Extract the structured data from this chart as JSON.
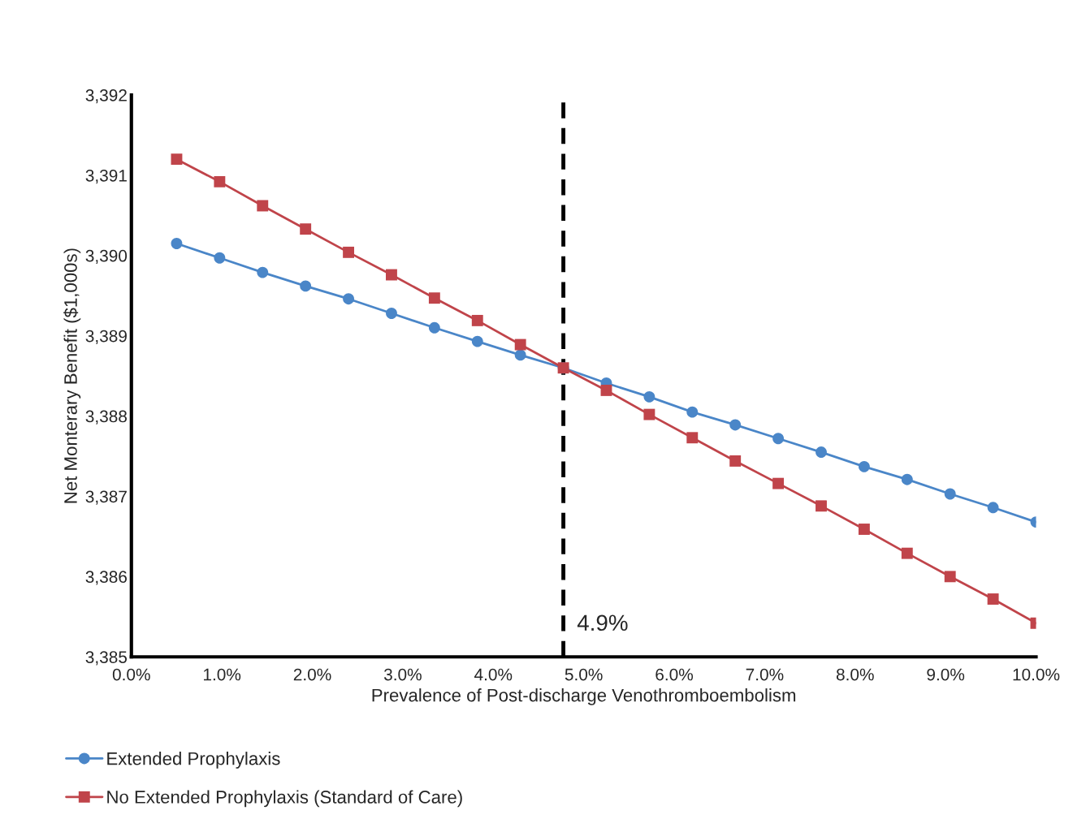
{
  "chart_data": {
    "type": "line",
    "xlabel": "Prevalence of Post-discharge Venothromboembolism",
    "ylabel": "Net Monterary Benefit ($1,000s)",
    "x": [
      0.5,
      0.975,
      1.45,
      1.925,
      2.4,
      2.875,
      3.35,
      3.825,
      4.3,
      4.775,
      5.25,
      5.725,
      6.2,
      6.675,
      7.15,
      7.625,
      8.1,
      8.575,
      9.05,
      9.525,
      10.0
    ],
    "series": [
      {
        "name": "Extended Prophylaxis",
        "color": "#4a86c8",
        "marker": "circle",
        "values": [
          3390.15,
          3389.97,
          3389.79,
          3389.62,
          3389.46,
          3389.28,
          3389.1,
          3388.93,
          3388.76,
          3388.6,
          3388.41,
          3388.24,
          3388.05,
          3387.89,
          3387.72,
          3387.55,
          3387.37,
          3387.21,
          3387.03,
          3386.86,
          3386.68
        ]
      },
      {
        "name": "No Extended Prophylaxis (Standard of Care)",
        "color": "#c0444a",
        "marker": "square",
        "values": [
          3391.2,
          3390.92,
          3390.62,
          3390.33,
          3390.04,
          3389.76,
          3389.47,
          3389.19,
          3388.89,
          3388.6,
          3388.32,
          3388.02,
          3387.73,
          3387.44,
          3387.16,
          3386.88,
          3386.59,
          3386.29,
          3386.0,
          3385.72,
          3385.42
        ]
      }
    ],
    "xlim": [
      0,
      10
    ],
    "xticks": [
      {
        "value": 0,
        "label": "0.0%"
      },
      {
        "value": 1,
        "label": "1.0%"
      },
      {
        "value": 2,
        "label": "2.0%"
      },
      {
        "value": 3,
        "label": "3.0%"
      },
      {
        "value": 4,
        "label": "4.0%"
      },
      {
        "value": 5,
        "label": "5.0%"
      },
      {
        "value": 6,
        "label": "6.0%"
      },
      {
        "value": 7,
        "label": "7.0%"
      },
      {
        "value": 8,
        "label": "8.0%"
      },
      {
        "value": 9,
        "label": "9.0%"
      },
      {
        "value": 10,
        "label": "10.0%"
      }
    ],
    "ylim": [
      3385,
      3392
    ],
    "yticks": [
      {
        "value": 3385,
        "label": "3,385"
      },
      {
        "value": 3386,
        "label": "3,386"
      },
      {
        "value": 3387,
        "label": "3,387"
      },
      {
        "value": 3388,
        "label": "3,388"
      },
      {
        "value": 3389,
        "label": "3,389"
      },
      {
        "value": 3390,
        "label": "3,390"
      },
      {
        "value": 3391,
        "label": "3,391"
      },
      {
        "value": 3392,
        "label": "3,392"
      }
    ],
    "ref_lines": [
      {
        "axis": "x",
        "value": 4.775,
        "color": "#000000",
        "line_style": "dashed"
      }
    ],
    "annotations": [
      {
        "text": "4.9%",
        "x": 4.775,
        "y": 3385.4
      }
    ],
    "grid": false,
    "legend": "bottom left",
    "line_style": "solid"
  }
}
